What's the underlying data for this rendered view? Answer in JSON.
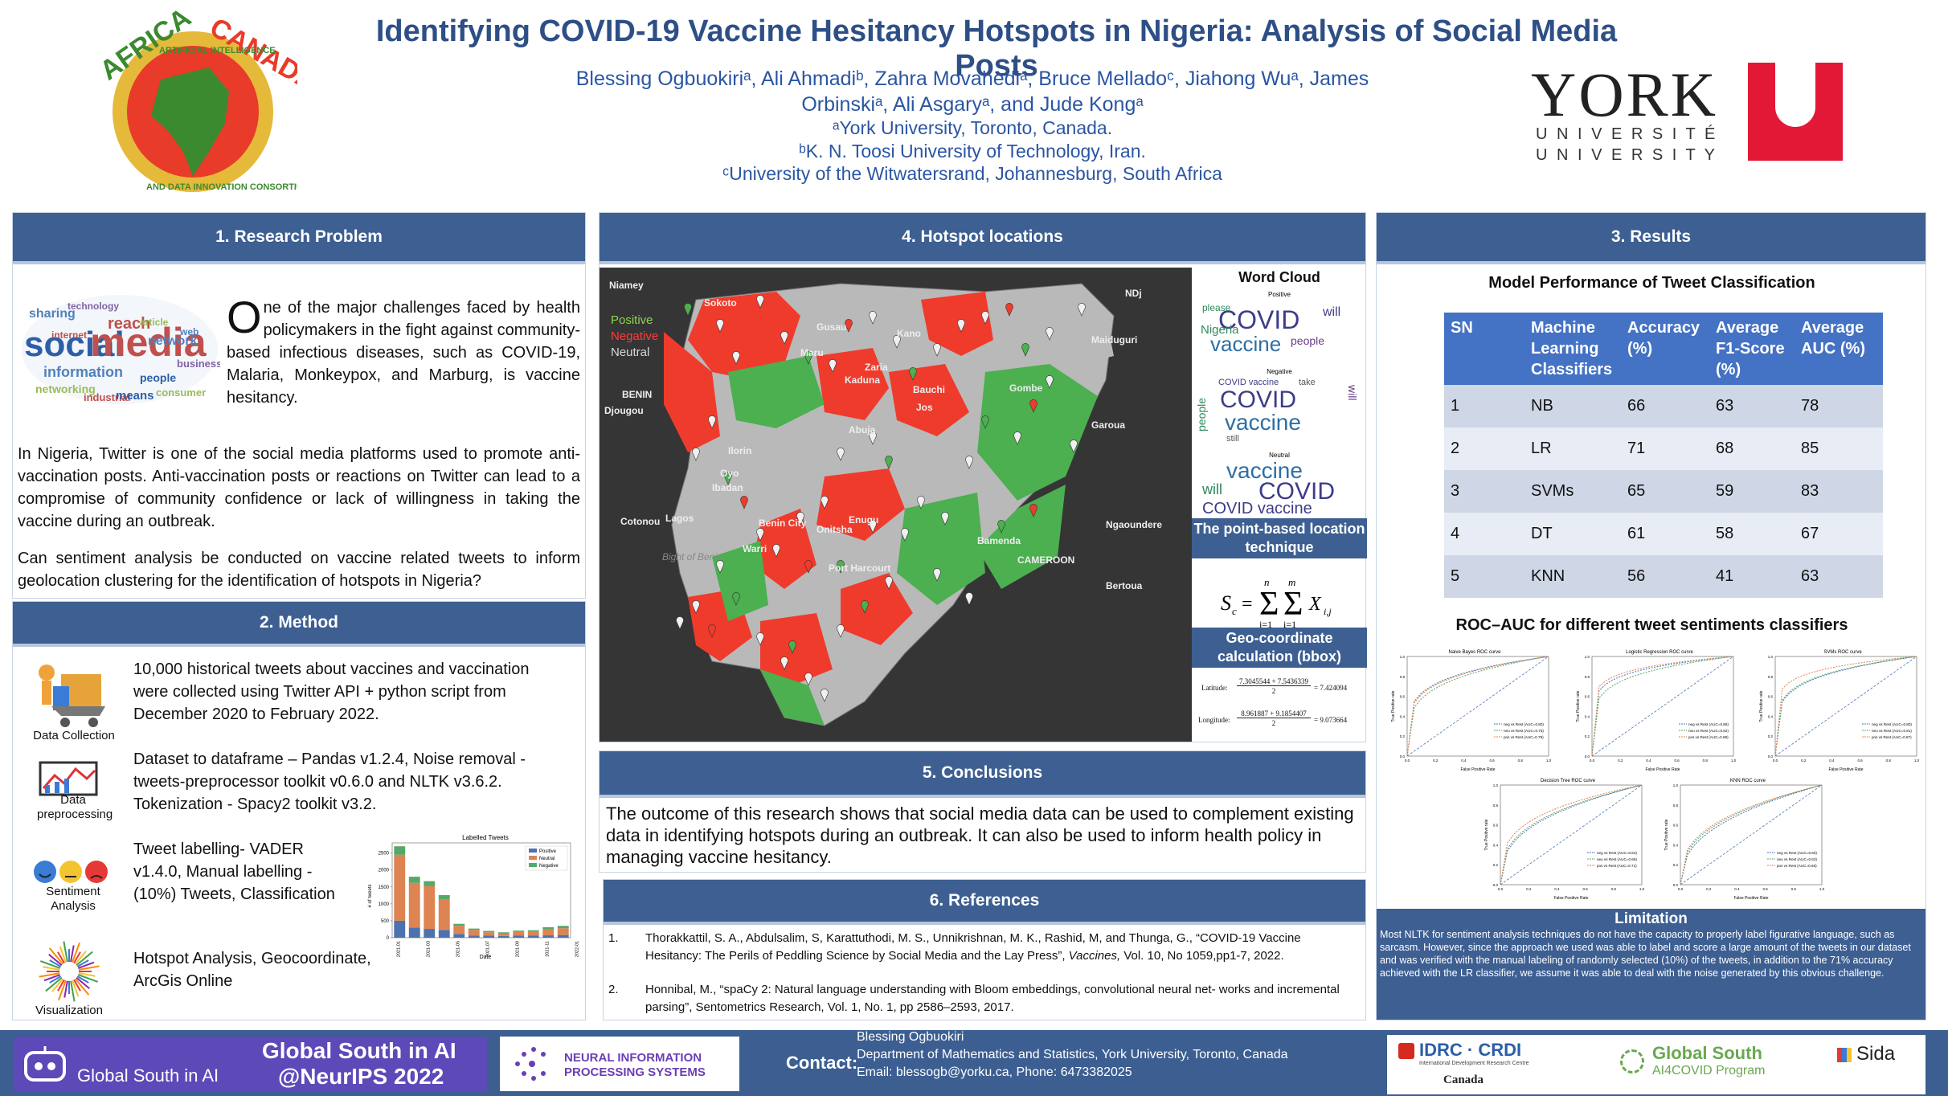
{
  "header": {
    "title": "Identifying COVID-19 Vaccine Hesitancy Hotspots in Nigeria: Analysis of Social Media Posts",
    "authors_line1": "Blessing Ogbuokiriᵃ, Ali Ahmadiᵇ, Zahra Movahediᵃ, Bruce Melladoᶜ, Jiahong Wuᵃ, James",
    "authors_line2": "Orbinskiᵃ, Ali Asgaryᵃ, and Jude Kongᵃ",
    "affiliation_a": "ᵃYork University, Toronto, Canada.",
    "affiliation_b": "ᵇK. N. Toosi University of Technology, Iran.",
    "affiliation_c": "ᶜUniversity of the Witwatersrand, Johannesburg, South Africa",
    "logo_left": {
      "top_left": "AFRICA",
      "top_right": "CANADA",
      "ring_top": "ARTIFICIAL INTELLIGENCE",
      "ring_bottom": "AND DATA INNOVATION CONSORTIUM"
    },
    "logo_right": {
      "word": "YORK",
      "line1": "U N I V E R S I T É",
      "line2": "U N I V E R S I T Y",
      "mark": "U"
    }
  },
  "research_problem": {
    "heading": "1. Research Problem",
    "dropcap": "O",
    "intro": "ne of the major challenges faced by health policymakers in the fight against community-based infectious diseases, such as COVID-19, Malaria, Monkeypox, and Marburg, is vaccine hesitancy.",
    "para2": "In Nigeria, Twitter is one of the social media platforms used to promote anti-vaccination posts. Anti-vaccination posts or reactions on Twitter can lead to a compromise of community confidence or lack of willingness in taking the vaccine during an outbreak.",
    "question": "Can sentiment analysis be conducted on vaccine related tweets to inform geolocation clustering for the identification of hotspots in Nigeria?",
    "cloud_words": [
      "social",
      "media",
      "sharing",
      "information",
      "networking",
      "reach",
      "people",
      "network",
      "industrial",
      "means",
      "internet",
      "consumer",
      "business",
      "article",
      "web",
      "technology"
    ]
  },
  "method": {
    "heading": "2. Method",
    "steps": [
      {
        "icon": "data-collection-icon",
        "caption": "Data Collection",
        "text": "10,000 historical tweets about vaccines and vaccination were collected using Twitter API + python script from December 2020 to February 2022."
      },
      {
        "icon": "data-preprocessing-icon",
        "caption": "Data preprocessing",
        "text": "Dataset to dataframe – Pandas v1.2.4, Noise removal - tweets-preprocessor toolkit v0.6.0 and NLTK v3.6.2. Tokenization - Spacy2 toolkit v3.2."
      },
      {
        "icon": "sentiment-analysis-icon",
        "caption": "Sentiment Analysis",
        "text": "Tweet labelling- VADER v1.4.0, Manual labelling - (10%) Tweets, Classification"
      },
      {
        "icon": "visualization-icon",
        "caption": "Visualization",
        "text": "Hotspot Analysis, Geocoordinate, ArcGis Online"
      }
    ],
    "mini_chart": {
      "title": "Labelled Tweets",
      "ylabel": "# of tweets",
      "xlabel": "Date",
      "yticks": [
        "0",
        "500",
        "1000",
        "1500",
        "2000",
        "2500"
      ],
      "xticks": [
        "2021-01",
        "2021-03",
        "2021-05",
        "2021-07",
        "2021-09",
        "2021-11",
        "2022-01"
      ],
      "legend": [
        "Positive",
        "Neutral",
        "Negative"
      ]
    }
  },
  "chart_data": {
    "type": "bar",
    "title": "Labelled Tweets",
    "xlabel": "Date",
    "ylabel": "# of tweets",
    "ylim": [
      0,
      2800
    ],
    "series_colors": {
      "Positive": "#4c72b0",
      "Neutral": "#dd8452",
      "Negative": "#55a868"
    },
    "series": [
      {
        "name": "Positive",
        "values": [
          500,
          300,
          260,
          230,
          110,
          60,
          60,
          50,
          60,
          60,
          70,
          80
        ]
      },
      {
        "name": "Neutral",
        "values": [
          1950,
          1320,
          1260,
          900,
          240,
          170,
          100,
          80,
          120,
          120,
          180,
          200
        ]
      },
      {
        "name": "Negative",
        "values": [
          250,
          180,
          150,
          130,
          60,
          40,
          40,
          30,
          30,
          40,
          60,
          70
        ]
      }
    ]
  },
  "hotspots": {
    "heading": "4. Hotspot locations",
    "legend": {
      "positive": "Positive",
      "negative": "Negative",
      "neutral": "Neutral",
      "positive_color": "#8fd44c",
      "negative_color": "#ff3b3b",
      "neutral_color": "#d8d8d8"
    },
    "places": [
      "Niamey",
      "Sokoto",
      "Gusau",
      "Kano",
      "Maiduguri",
      "Zaria",
      "Kaduna",
      "Bauchi",
      "Gombe",
      "BENIN",
      "Djougou",
      "Jos",
      "Abuja",
      "Garoua",
      "Ilorin",
      "Oyo",
      "Ibadan",
      "Ngaoundere",
      "Cotonou",
      "Lagos",
      "Benin City",
      "Onitsha",
      "Enugu",
      "Warri",
      "Bamenda",
      "Bight of Benin",
      "Port Harcourt",
      "CAMEROON",
      "Bertoua",
      "Maru",
      "NDj"
    ],
    "word_cloud_label": "Word Cloud",
    "wc_positive_label": "Positive",
    "wc_negative_label": "Negative",
    "wc_neutral_label": "Neutral",
    "wc_positive_words": [
      "COVID",
      "vaccine",
      "Nigeria",
      "people",
      "will",
      "please"
    ],
    "wc_negative_words": [
      "COVID",
      "vaccine",
      "people",
      "will",
      "still",
      "take",
      "COVID vaccine"
    ],
    "wc_neutral_words": [
      "vaccine",
      "COVID",
      "will",
      "COVID vaccine"
    ],
    "point_based_label": "The point-based location technique",
    "formula": "S_c = Σ (j=1..n) Σ (i=1..m) X_i,j",
    "geo_label": "Geo-coordinate calculation (bbox)",
    "lat_label": "Latitude:",
    "lat_num": "7.3045544 + 7.5436339",
    "lat_den": "2",
    "lat_val": "= 7.424094",
    "lon_label": "Longitude:",
    "lon_num": "8.961887 + 9.1854407",
    "lon_den": "2",
    "lon_val": "= 9.073664"
  },
  "conclusions": {
    "heading": "5.  Conclusions",
    "text": "The outcome of this research shows that social media data can be used to complement existing data in identifying hotspots during an outbreak. It can also be used to inform health policy in managing vaccine hesitancy."
  },
  "references": {
    "heading": "6. References",
    "items": [
      {
        "num": "1.",
        "text_a": "Thorakkattil, S. A.,  Abdulsalim, S, Karattuthodi, M. S., Unnikrishnan, M. K., Rashid, M, and Thunga, G., “COVID-19 Vaccine Hesitancy: The Perils of Peddling Science by Social Media and the Lay Press”, ",
        "journal": "Vaccines,",
        "text_b": " Vol. 10, No 1059,pp1-7, 2022."
      },
      {
        "num": "2.",
        "text_a": "Honnibal, M., “spaCy 2: Natural language understanding with Bloom embeddings, convolutional neural net- works and incremental parsing”, Sentometrics Research, Vol. 1, No. 1, pp 2586–2593, 2017.",
        "journal": "",
        "text_b": ""
      }
    ]
  },
  "results": {
    "heading": "3. Results",
    "table_title": "Model Performance of Tweet Classification",
    "columns": [
      "SN",
      "Machine Learning Classifiers",
      "Accuracy (%)",
      "Average F1-Score (%)",
      "Average AUC (%)"
    ],
    "rows": [
      [
        "1",
        "NB",
        "66",
        "63",
        "78"
      ],
      [
        "2",
        "LR",
        "71",
        "68",
        "85"
      ],
      [
        "3",
        "SVMs",
        "65",
        "59",
        "83"
      ],
      [
        "4",
        "DT",
        "61",
        "58",
        "67"
      ],
      [
        "5",
        "KNN",
        "56",
        "41",
        "63"
      ]
    ],
    "roc_title": "ROC–AUC for different tweet sentiments classifiers",
    "roc_plots": [
      {
        "title": "Naive Bayes ROC curve",
        "legend": [
          "neg vs Rest (AUC=0.80)",
          "neu vs Rest (AUC=0.76)",
          "pos vs Rest (AUC=0.79)"
        ]
      },
      {
        "title": "Logistic Regression ROC curve",
        "legend": [
          "neg vs Rest (AUC=0.86)",
          "neu vs Rest (AUC=0.82)",
          "pos vs Rest (AUC=0.88)"
        ]
      },
      {
        "title": "SVMs ROC curve",
        "legend": [
          "neg vs Rest (AUC=0.80)",
          "neu vs Rest (AUC=0.81)",
          "pos vs Rest (AUC=0.87)"
        ]
      },
      {
        "title": "Decision Tree ROC curve",
        "legend": [
          "neg vs Rest (AUC=0.64)",
          "neu vs Rest (AUC=0.66)",
          "pos vs Rest (AUC=0.71)"
        ]
      },
      {
        "title": "KNN ROC curve",
        "legend": [
          "neg vs Rest (AUC=0.60)",
          "neu vs Rest (AUC=0.63)",
          "pos vs Rest (AUC=0.65)"
        ]
      }
    ],
    "roc_xlabel": "False Positive Rate",
    "roc_ylabel": "True Positive rate",
    "limitation_title": "Limitation",
    "limitation_text": "Most NLTK for sentiment analysis techniques do not have the capacity to properly label figurative language, such as sarcasm. However, since the approach we used was able to label and score a large amount of the tweets in our dataset and was verified with the manual labeling of randomly selected (10%) of the tweets, in addition to the 71% accuracy achieved with the LR classifier, we assume it was able to deal with the noise generated by this obvious challenge."
  },
  "footer": {
    "gsai_title1": "Global South in AI",
    "gsai_title2": "@NeurIPS 2022",
    "gsai_small": "Global South in AI",
    "neurips_line1": "NEURAL INFORMATION",
    "neurips_line2": "PROCESSING SYSTEMS",
    "contact_label": "Contact:",
    "contact_name": "Blessing Ogbuokiri",
    "contact_dept": "Department of Mathematics and Statistics, York University, Toronto, Canada",
    "contact_info": "Email: blessogb@yorku.ca,   Phone: 6473382025",
    "idrc": "IDRC · CRDI",
    "idrc_sub": "International Development Research Centre",
    "canada": "Canada",
    "gs_covid1": "Global South",
    "gs_covid2": "AI4COVID Program",
    "sida": "Sida"
  }
}
